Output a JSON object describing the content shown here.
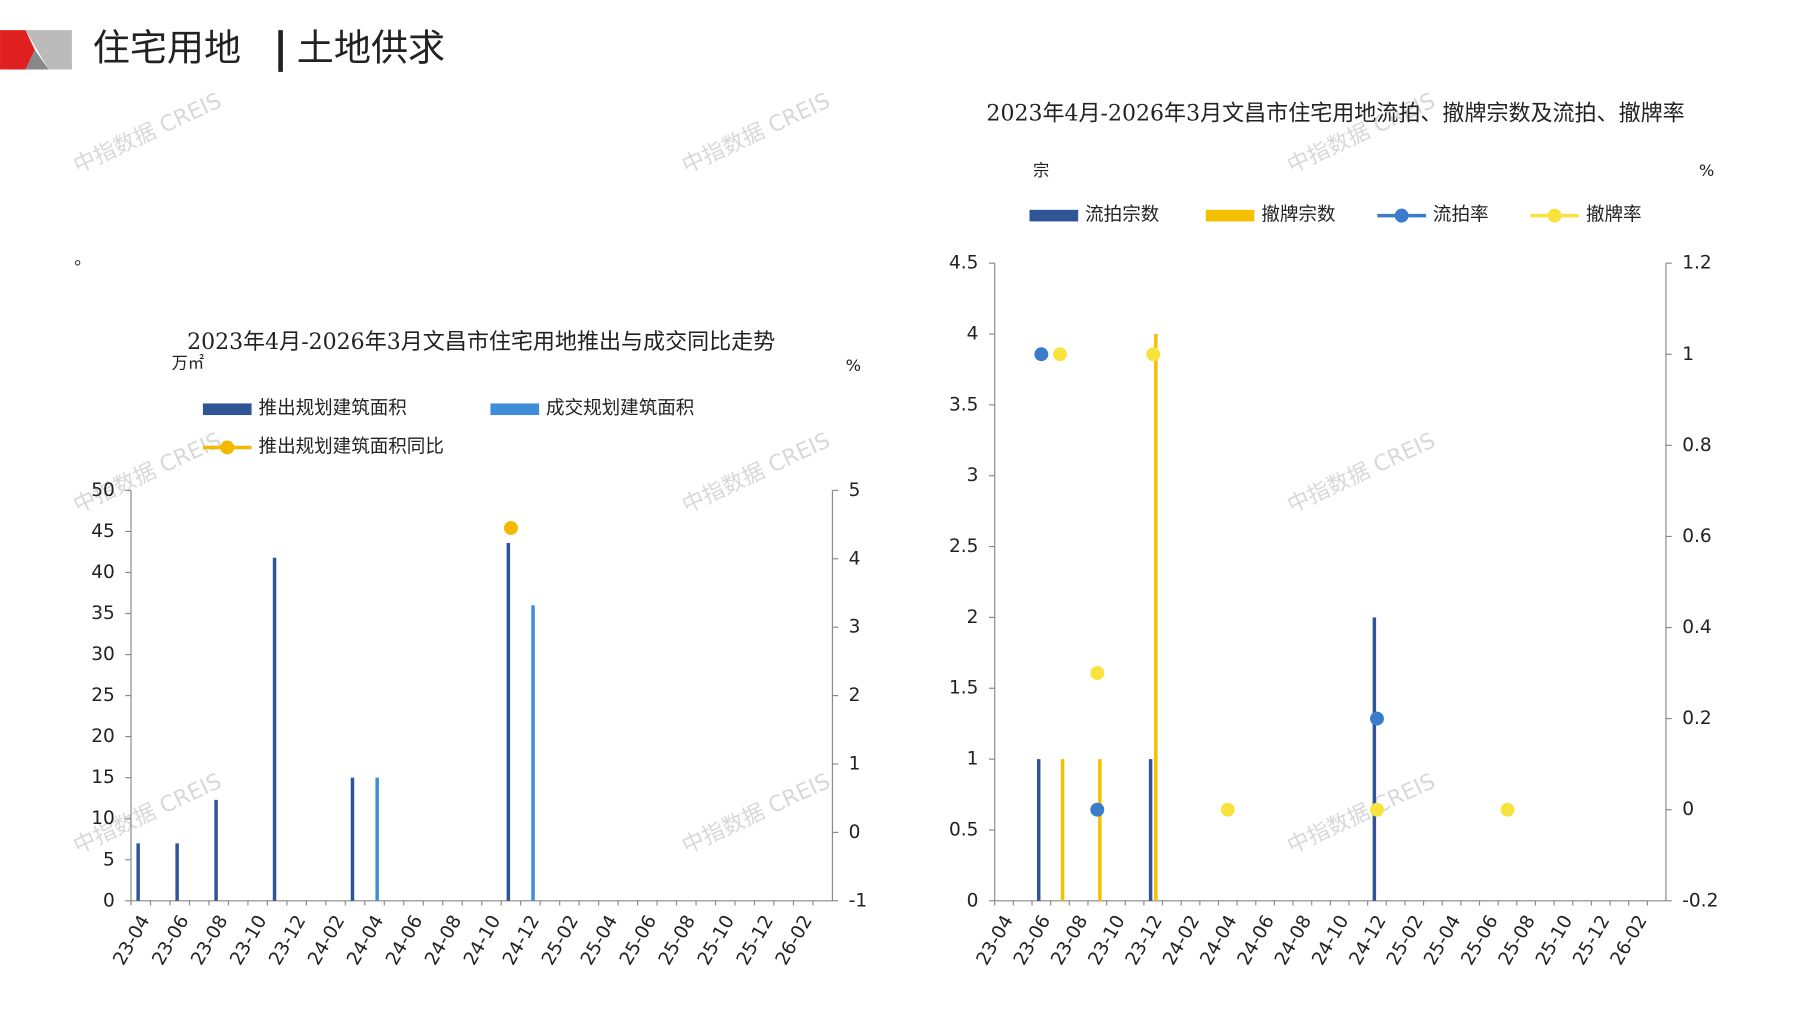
{
  "header": {
    "title": "住宅用地",
    "subtitle": "土地供求"
  },
  "note": "。",
  "watermark": "中指数据 CREIS",
  "chart_data": [
    {
      "type": "bar",
      "title": "2023年4月-2026年3月文昌市住宅用地推出与成交同比走势",
      "y_label": "万㎡",
      "y2_label": "%",
      "categories": [
        "23-04",
        null,
        "23-06",
        null,
        "23-08",
        null,
        "23-10",
        null,
        "23-12",
        null,
        "24-02",
        null,
        "24-04",
        null,
        "24-06",
        null,
        "24-08",
        null,
        "24-10",
        null,
        "24-12",
        null,
        "25-02",
        null,
        "25-04",
        null,
        "25-06",
        null,
        "25-08",
        null,
        "25-10",
        null,
        "25-12",
        null,
        "26-02",
        null
      ],
      "series": [
        {
          "name": "推出规划建筑面积",
          "type": "bar",
          "color": "#2f5597",
          "values": [
            7,
            0,
            7,
            0,
            12.3,
            0,
            0,
            41.8,
            0,
            0,
            0,
            15,
            0,
            0,
            0,
            0,
            0,
            0,
            0,
            43.6,
            0,
            0,
            0,
            0,
            0,
            0,
            0,
            0,
            0,
            0,
            0,
            0,
            0,
            0,
            0,
            0
          ]
        },
        {
          "name": "成交规划建筑面积",
          "type": "bar",
          "color": "#3f8fd8",
          "values": [
            0,
            0,
            0,
            0,
            0,
            0,
            0,
            0,
            0,
            0,
            0,
            0,
            15,
            0,
            0,
            0,
            0,
            0,
            0,
            0,
            36,
            0,
            0,
            0,
            0,
            0,
            0,
            0,
            0,
            0,
            0,
            0,
            0,
            0,
            0,
            0
          ]
        },
        {
          "name": "推出规划建筑面积同比",
          "type": "marker",
          "axis": "y2",
          "color": "#f5b800",
          "values": [
            null,
            null,
            null,
            null,
            null,
            null,
            null,
            null,
            null,
            null,
            null,
            null,
            null,
            null,
            null,
            null,
            null,
            null,
            null,
            4.45,
            null,
            null,
            null,
            null,
            null,
            null,
            null,
            null,
            null,
            null,
            null,
            null,
            null,
            null,
            null,
            null
          ]
        }
      ],
      "ylim": [
        0,
        50
      ],
      "yticks": [
        0,
        5,
        10,
        15,
        20,
        25,
        30,
        35,
        40,
        45,
        50
      ],
      "y2lim": [
        -1,
        5
      ],
      "y2ticks": [
        -1,
        0,
        1,
        2,
        3,
        4,
        5
      ]
    },
    {
      "type": "bar",
      "title": "2023年4月-2026年3月文昌市住宅用地流拍、撤牌宗数及流拍、撤牌率",
      "y_label": "宗",
      "y2_label": "%",
      "categories": [
        "23-04",
        null,
        "23-06",
        null,
        "23-08",
        null,
        "23-10",
        null,
        "23-12",
        null,
        "24-02",
        null,
        "24-04",
        null,
        "24-06",
        null,
        "24-08",
        null,
        "24-10",
        null,
        "24-12",
        null,
        "25-02",
        null,
        "25-04",
        null,
        "25-06",
        null,
        "25-08",
        null,
        "25-10",
        null,
        "25-12",
        null,
        "26-02",
        null
      ],
      "series": [
        {
          "name": "流拍宗数",
          "type": "bar",
          "color": "#2f5597",
          "values": [
            0,
            0,
            1,
            0,
            0,
            0,
            0,
            0,
            1,
            0,
            0,
            0,
            0,
            0,
            0,
            0,
            0,
            0,
            0,
            0,
            2,
            0,
            0,
            0,
            0,
            0,
            0,
            0,
            0,
            0,
            0,
            0,
            0,
            0,
            0,
            0
          ]
        },
        {
          "name": "撤牌宗数",
          "type": "bar",
          "color": "#f5c000",
          "values": [
            0,
            0,
            0,
            1,
            0,
            1,
            0,
            0,
            4,
            0,
            0,
            0,
            0,
            0,
            0,
            0,
            0,
            0,
            0,
            0,
            0,
            0,
            0,
            0,
            0,
            0,
            0,
            0,
            0,
            0,
            0,
            0,
            0,
            0,
            0,
            0
          ]
        },
        {
          "name": "流拍率",
          "type": "marker",
          "axis": "y2",
          "color": "#3a7cc9",
          "values": [
            null,
            null,
            1,
            null,
            null,
            0,
            null,
            null,
            null,
            null,
            null,
            null,
            null,
            null,
            null,
            null,
            null,
            null,
            null,
            null,
            0.2,
            null,
            null,
            null,
            null,
            null,
            null,
            null,
            null,
            null,
            null,
            null,
            null,
            null,
            null,
            null
          ]
        },
        {
          "name": "撤牌率",
          "type": "marker",
          "axis": "y2",
          "color": "#f7e33c",
          "values": [
            null,
            null,
            null,
            1,
            null,
            0.3,
            null,
            null,
            1,
            null,
            null,
            null,
            0,
            null,
            null,
            null,
            null,
            null,
            null,
            null,
            0,
            null,
            null,
            null,
            null,
            null,
            null,
            0,
            null,
            null,
            null,
            null,
            null,
            null,
            null,
            null
          ]
        }
      ],
      "ylim": [
        0,
        4.5
      ],
      "yticks": [
        0,
        0.5,
        1,
        1.5,
        2,
        2.5,
        3,
        3.5,
        4,
        4.5
      ],
      "y2lim": [
        -0.2,
        1.2
      ],
      "y2ticks": [
        -0.2,
        0,
        0.2,
        0.4,
        0.6,
        0.8,
        1,
        1.2
      ]
    }
  ]
}
